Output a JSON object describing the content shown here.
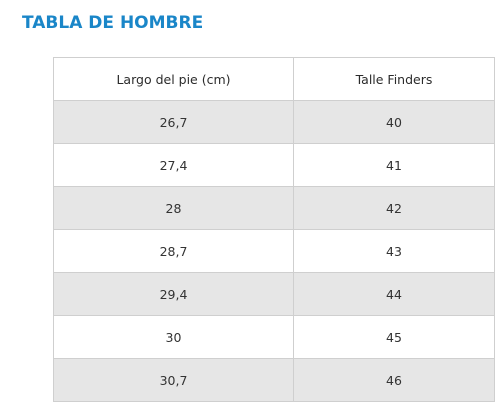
{
  "title": "TABLA DE HOMBRE",
  "colors": {
    "title": "#1a86c8",
    "row_shade": "#e6e6e6",
    "border": "#cfcfcf"
  },
  "table": {
    "headers": [
      "Largo del pie (cm)",
      "Talle Finders"
    ],
    "rows": [
      [
        "26,7",
        "40"
      ],
      [
        "27,4",
        "41"
      ],
      [
        "28",
        "42"
      ],
      [
        "28,7",
        "43"
      ],
      [
        "29,4",
        "44"
      ],
      [
        "30",
        "45"
      ],
      [
        "30,7",
        "46"
      ]
    ]
  }
}
